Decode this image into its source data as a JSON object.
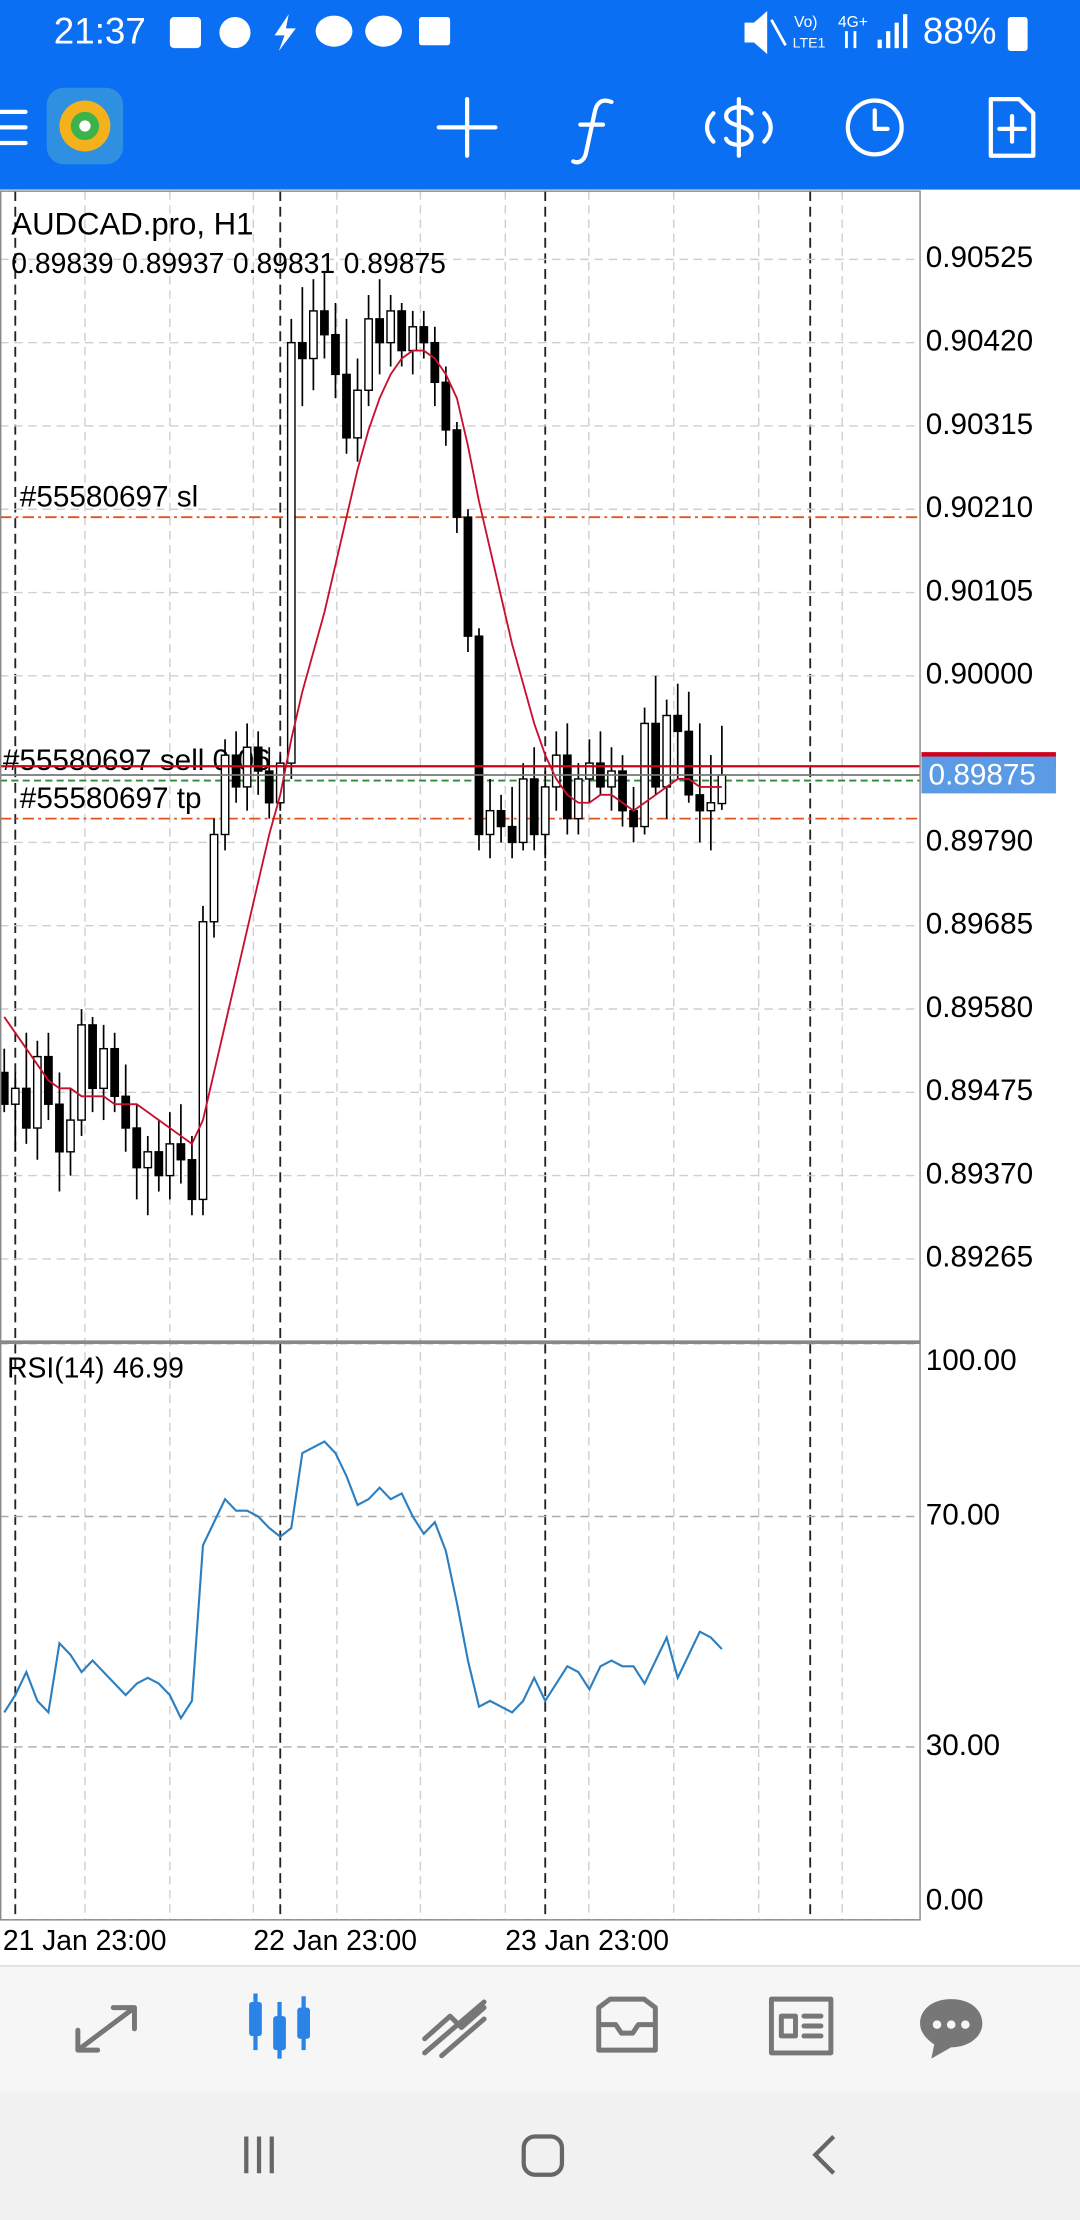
{
  "status_bar": {
    "time": "21:37",
    "network": [
      "Vo)",
      "LTE1",
      "4G+"
    ],
    "battery": "88%"
  },
  "chart_data": {
    "type": "candlestick",
    "title": "AUDCAD.pro, H1",
    "candles": {
      "open": [
        0.895,
        0.8946,
        0.8948,
        0.8943,
        0.8952,
        0.8946,
        0.894,
        0.8944,
        0.8956,
        0.8948,
        0.8953,
        0.8947,
        0.8943,
        0.8938,
        0.894,
        0.8937,
        0.8941,
        0.8939,
        0.8934,
        0.8969,
        0.898,
        0.899,
        0.8986,
        0.8991,
        0.8988,
        0.8984,
        0.8989,
        0.9042,
        0.904,
        0.9046,
        0.9043,
        0.9038,
        0.903,
        0.9036,
        0.9045,
        0.9042,
        0.9046,
        0.9041,
        0.9044,
        0.9042,
        0.9037,
        0.9031,
        0.902,
        0.9005,
        0.898,
        0.8983,
        0.8981,
        0.8979,
        0.8987,
        0.898,
        0.8986,
        0.899,
        0.8982,
        0.8987,
        0.8989,
        0.8986,
        0.8988,
        0.8983,
        0.8981,
        0.8994,
        0.8986,
        0.8995,
        0.8993,
        0.8985,
        0.8983,
        0.89839
      ],
      "high": [
        0.8953,
        0.895,
        0.8955,
        0.8954,
        0.8955,
        0.895,
        0.8948,
        0.8958,
        0.8957,
        0.8956,
        0.8955,
        0.8951,
        0.8946,
        0.8942,
        0.8944,
        0.8945,
        0.8946,
        0.8942,
        0.8971,
        0.8982,
        0.8992,
        0.8993,
        0.8994,
        0.8993,
        0.8991,
        0.899,
        0.9045,
        0.9049,
        0.905,
        0.9051,
        0.9047,
        0.9045,
        0.904,
        0.9048,
        0.905,
        0.9048,
        0.9047,
        0.9046,
        0.9046,
        0.9044,
        0.9039,
        0.9032,
        0.9021,
        0.9006,
        0.8987,
        0.8985,
        0.8986,
        0.8989,
        0.8991,
        0.8988,
        0.8993,
        0.8994,
        0.8989,
        0.8992,
        0.8993,
        0.8991,
        0.899,
        0.8986,
        0.8996,
        0.9,
        0.8997,
        0.8999,
        0.8998,
        0.8994,
        0.899,
        0.89937
      ],
      "low": [
        0.8945,
        0.894,
        0.8941,
        0.8939,
        0.8944,
        0.8935,
        0.8937,
        0.8942,
        0.8945,
        0.8944,
        0.8945,
        0.894,
        0.8934,
        0.8932,
        0.8935,
        0.8934,
        0.8936,
        0.8932,
        0.8932,
        0.8967,
        0.8978,
        0.8984,
        0.8983,
        0.8985,
        0.8982,
        0.8983,
        0.8987,
        0.9034,
        0.9036,
        0.904,
        0.9035,
        0.9028,
        0.9027,
        0.9034,
        0.9038,
        0.9039,
        0.9039,
        0.9038,
        0.904,
        0.9034,
        0.9029,
        0.9018,
        0.9003,
        0.8978,
        0.8977,
        0.8979,
        0.8977,
        0.8978,
        0.8978,
        0.8977,
        0.8983,
        0.898,
        0.898,
        0.8984,
        0.8985,
        0.8983,
        0.8981,
        0.8979,
        0.898,
        0.8985,
        0.8982,
        0.8987,
        0.8984,
        0.8979,
        0.8978,
        0.89831
      ],
      "close": [
        0.8946,
        0.8948,
        0.8943,
        0.8952,
        0.8946,
        0.894,
        0.8944,
        0.8956,
        0.8948,
        0.8953,
        0.8947,
        0.8943,
        0.8938,
        0.894,
        0.8937,
        0.8941,
        0.8939,
        0.8934,
        0.8969,
        0.898,
        0.899,
        0.8986,
        0.8991,
        0.8988,
        0.8984,
        0.8989,
        0.9042,
        0.904,
        0.9046,
        0.9043,
        0.9038,
        0.903,
        0.9036,
        0.9045,
        0.9042,
        0.9046,
        0.9041,
        0.9044,
        0.9042,
        0.9037,
        0.9031,
        0.902,
        0.9005,
        0.898,
        0.8983,
        0.8981,
        0.8979,
        0.8987,
        0.898,
        0.8986,
        0.899,
        0.8982,
        0.8987,
        0.8989,
        0.8986,
        0.8988,
        0.8983,
        0.8981,
        0.8994,
        0.8986,
        0.8995,
        0.8993,
        0.8985,
        0.8983,
        0.8984,
        0.89875
      ],
      "up_color": "#ffffff",
      "down_color": "#000000"
    },
    "ma": {
      "color": "#c8102e",
      "values": [
        0.8957,
        0.8955,
        0.8953,
        0.8951,
        0.8949,
        0.8948,
        0.8948,
        0.8947,
        0.8947,
        0.8947,
        0.8946,
        0.8946,
        0.8946,
        0.8945,
        0.8944,
        0.8943,
        0.8942,
        0.8941,
        0.8944,
        0.895,
        0.8956,
        0.8962,
        0.8968,
        0.8974,
        0.898,
        0.8985,
        0.8992,
        0.8998,
        0.9003,
        0.9008,
        0.9014,
        0.902,
        0.9026,
        0.9031,
        0.9035,
        0.9038,
        0.904,
        0.9041,
        0.9041,
        0.904,
        0.9038,
        0.9035,
        0.9029,
        0.9022,
        0.9016,
        0.901,
        0.9004,
        0.8999,
        0.8994,
        0.899,
        0.8987,
        0.8985,
        0.8984,
        0.8984,
        0.8985,
        0.8985,
        0.8984,
        0.8983,
        0.8984,
        0.8985,
        0.8986,
        0.8987,
        0.8987,
        0.8986,
        0.8986,
        0.8986
      ]
    },
    "ylim": [
      0.8916,
      0.90611
    ],
    "yticks": [
      0.90525,
      {
        "value": 0.9042,
        "label": "0.90420"
      },
      0.90315,
      {
        "value": 0.9021,
        "label": "0.90210"
      },
      0.90105,
      {
        "value": 0.9,
        "label": "0.90000"
      },
      {
        "value": 0.8979,
        "label": "0.89790"
      },
      0.89685,
      {
        "value": 0.8958,
        "label": "0.89580"
      },
      0.89475,
      {
        "value": 0.8937,
        "label": "0.89370"
      },
      0.89265
    ],
    "grid": true,
    "orders": [
      {
        "label": "#55580697 sl",
        "price": 0.902,
        "color": "#e0531f"
      },
      {
        "label": "#55580697 sell 0.06",
        "price": 0.89868,
        "color": "#2e8b3a"
      },
      {
        "label": "#55580697 tp",
        "price": 0.8982,
        "color": "#e0531f"
      }
    ],
    "ask": {
      "price": 0.89886,
      "color": "#d0021b"
    },
    "bid_color": "#5b9be6",
    "x_labels": [
      "21 Jan 23:00",
      "22 Jan 23:00",
      "23 Jan 23:00"
    ],
    "rsi": {
      "name": "RSI(14)",
      "color": "#2b7fc1",
      "ylim": [
        0,
        100
      ],
      "yticks": [
        {
          "value": 100,
          "label": "100.00"
        },
        {
          "value": 70,
          "label": "70.00"
        },
        {
          "value": 30,
          "label": "30.00"
        },
        {
          "value": 0,
          "label": "0.00"
        }
      ],
      "values": [
        36,
        39,
        43,
        38,
        36,
        48,
        46,
        43,
        45,
        43,
        41,
        39,
        41,
        42,
        41,
        39,
        35,
        38,
        65,
        69,
        73,
        71,
        71,
        70,
        68,
        66.5,
        68,
        81,
        82,
        83,
        81,
        77,
        72,
        73,
        75,
        73,
        74,
        70,
        67,
        69,
        64,
        55,
        45,
        37,
        38,
        37,
        36,
        38,
        42,
        38,
        41,
        44,
        43,
        40,
        44,
        45,
        44,
        44,
        41,
        45,
        49,
        42,
        46,
        50,
        49,
        46.99
      ]
    }
  }
}
